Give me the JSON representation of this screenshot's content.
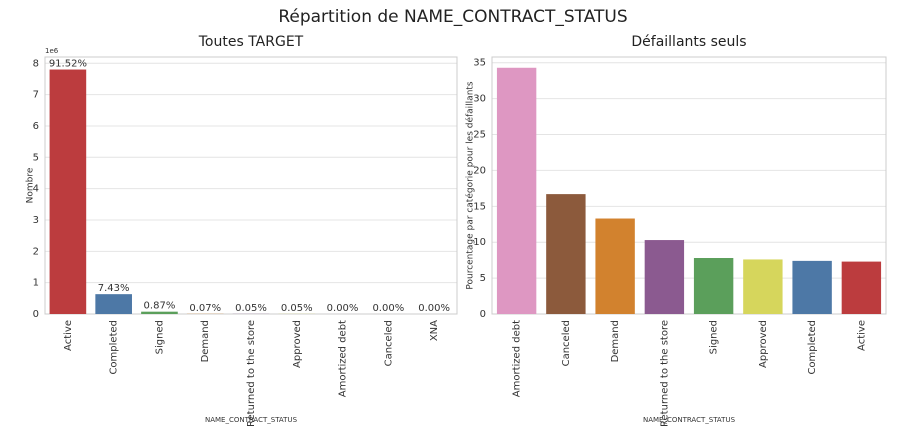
{
  "title": "Répartition de NAME_CONTRACT_STATUS",
  "chart_data": [
    {
      "type": "bar",
      "title": "Toutes TARGET",
      "xlabel": "NAME_CONTRACT_STATUS",
      "ylabel": "Nombre",
      "y_offset_label": "1e6",
      "categories": [
        "Active",
        "Completed",
        "Signed",
        "Demand",
        "Returned to the store",
        "Approved",
        "Amortized debt",
        "Canceled",
        "XNA"
      ],
      "values": [
        7.8,
        0.633,
        0.074,
        0.006,
        0.0043,
        0.0043,
        0.0002,
        0.0001,
        0.0001
      ],
      "annotations": [
        "91.52%",
        "7.43%",
        "0.87%",
        "0.07%",
        "0.05%",
        "0.05%",
        "0.00%",
        "0.00%",
        "0.00%"
      ],
      "colors": [
        "#bc3c3e",
        "#4d78a6",
        "#5b9f5b",
        "#d2822e",
        "#8b5a90",
        "#d6d65c",
        "#de97c2",
        "#8c5a3c",
        "#999999"
      ],
      "ylim": [
        0,
        8.2
      ],
      "yticks": [
        0,
        1,
        2,
        3,
        4,
        5,
        6,
        7,
        8
      ],
      "grid": true
    },
    {
      "type": "bar",
      "title": "Défaillants seuls",
      "xlabel": "NAME_CONTRACT_STATUS",
      "ylabel": "Pourcentage par catégorie pour les défaillants",
      "categories": [
        "Amortized debt",
        "Canceled",
        "Demand",
        "Returned to the store",
        "Signed",
        "Approved",
        "Completed",
        "Active"
      ],
      "values": [
        34.3,
        16.7,
        13.3,
        10.3,
        7.8,
        7.6,
        7.4,
        7.3
      ],
      "colors": [
        "#de97c2",
        "#8c5a3c",
        "#d2822e",
        "#8b5a90",
        "#5b9f5b",
        "#d6d65c",
        "#4d78a6",
        "#bc3c3e"
      ],
      "ylim": [
        0,
        35.8
      ],
      "yticks": [
        0,
        5,
        10,
        15,
        20,
        25,
        30,
        35
      ],
      "grid": true
    }
  ]
}
